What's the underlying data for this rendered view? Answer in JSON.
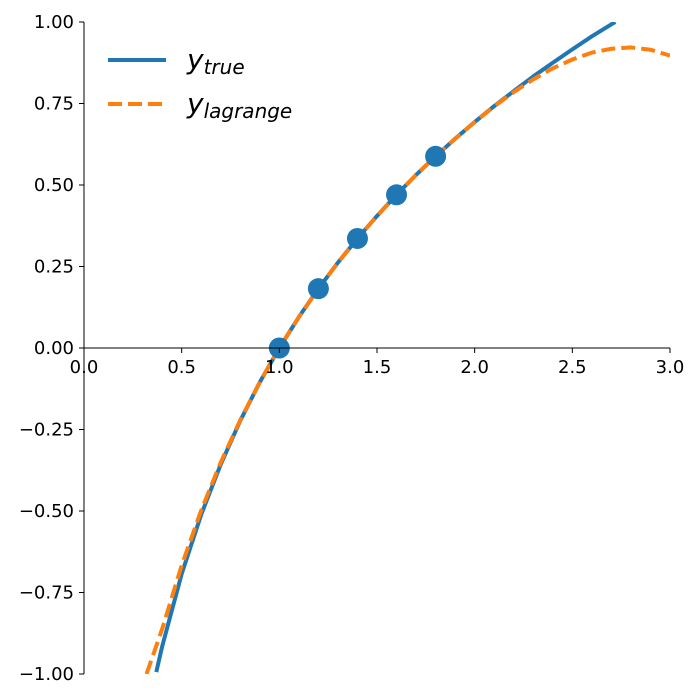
{
  "chart_data": {
    "type": "line",
    "xlim": [
      0.0,
      3.0
    ],
    "ylim": [
      -1.0,
      1.0
    ],
    "xticks": [
      "0.0",
      "0.5",
      "1.0",
      "1.5",
      "2.0",
      "2.5",
      "3.0"
    ],
    "yticks": [
      "−1.00",
      "−0.75",
      "−0.50",
      "−0.25",
      "0.00",
      "0.25",
      "0.50",
      "0.75",
      "1.00"
    ],
    "legend_position": "top-left",
    "grid": false,
    "series": [
      {
        "name_base": "y",
        "name_sub": "true",
        "color": "#1f77b4",
        "style": "solid",
        "x": [
          0.37,
          0.4,
          0.5,
          0.6,
          0.7,
          0.8,
          0.9,
          1.0,
          1.1,
          1.2,
          1.3,
          1.4,
          1.5,
          1.6,
          1.7,
          1.8,
          1.9,
          2.0,
          2.1,
          2.2,
          2.3,
          2.4,
          2.5,
          2.6,
          2.7,
          2.72
        ],
        "y": [
          -0.994,
          -0.916,
          -0.693,
          -0.511,
          -0.357,
          -0.223,
          -0.105,
          0.0,
          0.095,
          0.182,
          0.262,
          0.336,
          0.405,
          0.47,
          0.531,
          0.588,
          0.642,
          0.693,
          0.742,
          0.788,
          0.833,
          0.875,
          0.916,
          0.956,
          0.993,
          1.0
        ]
      },
      {
        "name_base": "y",
        "name_sub": "lagrange",
        "color": "#ff7f0e",
        "style": "dashed",
        "x": [
          0.32,
          0.4,
          0.5,
          0.6,
          0.7,
          0.8,
          0.9,
          1.0,
          1.1,
          1.2,
          1.3,
          1.4,
          1.5,
          1.6,
          1.7,
          1.8,
          1.9,
          2.0,
          2.1,
          2.2,
          2.3,
          2.4,
          2.5,
          2.6,
          2.7,
          2.8,
          2.9,
          3.0
        ],
        "y": [
          -1.0,
          -0.862,
          -0.667,
          -0.498,
          -0.351,
          -0.221,
          -0.105,
          0.0,
          0.095,
          0.182,
          0.262,
          0.336,
          0.405,
          0.47,
          0.531,
          0.588,
          0.642,
          0.693,
          0.741,
          0.785,
          0.824,
          0.858,
          0.885,
          0.906,
          0.918,
          0.922,
          0.915,
          0.897
        ]
      }
    ],
    "points": {
      "color": "#1f77b4",
      "x": [
        1.0,
        1.2,
        1.4,
        1.6,
        1.8
      ],
      "y": [
        0.0,
        0.182,
        0.336,
        0.47,
        0.588
      ]
    }
  }
}
